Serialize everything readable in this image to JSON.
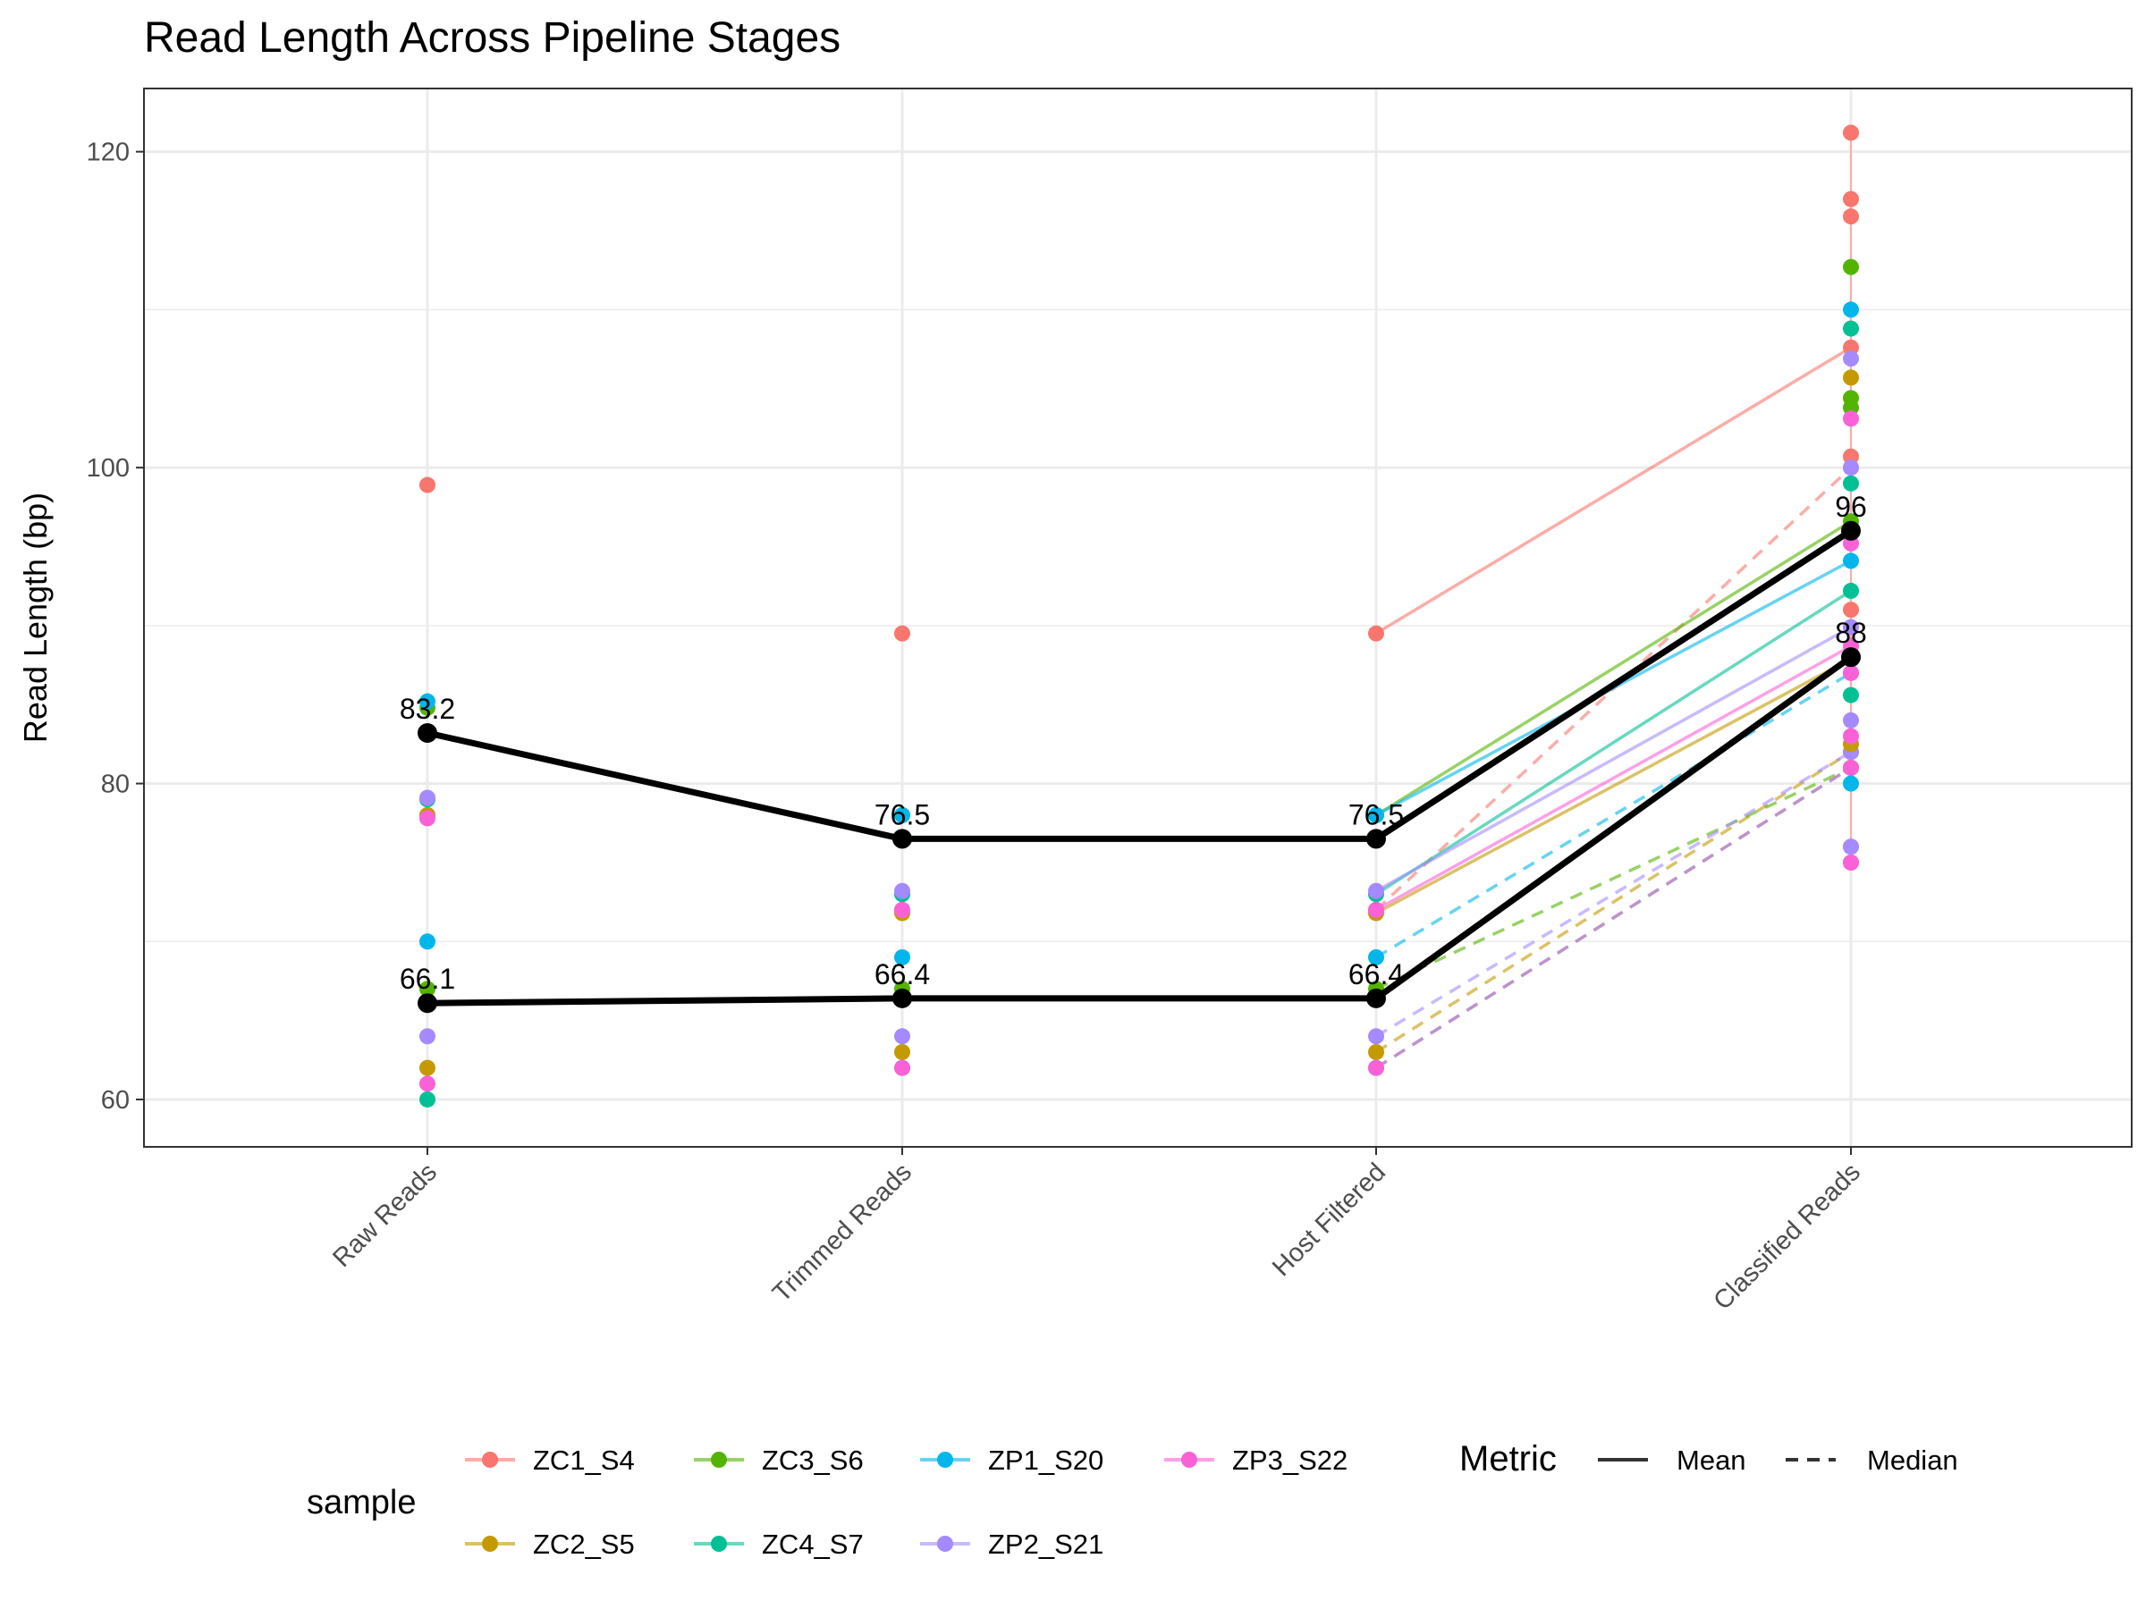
{
  "chart_data": {
    "type": "line",
    "title": "Read Length Across Pipeline Stages",
    "ylabel": "Read Length (bp)",
    "xlabel": "",
    "categories": [
      "Raw Reads",
      "Trimmed Reads",
      "Host Filtered",
      "Classified Reads"
    ],
    "ylim": [
      57,
      124
    ],
    "yticks": [
      60,
      80,
      100,
      120
    ],
    "grid": true,
    "samples": [
      {
        "name": "ZC1_S4",
        "color": "#F8766D",
        "mean": [
          98.9,
          89.5,
          89.5,
          107.6
        ],
        "median": [
          78.0,
          72.0,
          72.0,
          100.0
        ]
      },
      {
        "name": "ZC2_S5",
        "color": "#C49A00",
        "mean": [
          78.0,
          71.8,
          71.8,
          87.9
        ],
        "median": [
          62.0,
          63.0,
          63.0,
          82.0
        ]
      },
      {
        "name": "ZC3_S6",
        "color": "#53B400",
        "mean": [
          84.8,
          78.0,
          78.0,
          96.6
        ],
        "median": [
          67.0,
          67.0,
          67.0,
          81.0
        ]
      },
      {
        "name": "ZC4_S7",
        "color": "#00C094",
        "mean": [
          79.0,
          73.0,
          73.0,
          92.2
        ],
        "median": [
          60.0,
          62.0,
          62.0,
          81.0
        ]
      },
      {
        "name": "ZP1_S20",
        "color": "#00B6EB",
        "mean": [
          85.2,
          78.0,
          78.0,
          94.1
        ],
        "median": [
          70.0,
          69.0,
          69.0,
          87.0
        ]
      },
      {
        "name": "ZP2_S21",
        "color": "#A58AFF",
        "mean": [
          79.1,
          73.2,
          73.2,
          89.9
        ],
        "median": [
          64.0,
          64.0,
          64.0,
          82.0
        ]
      },
      {
        "name": "ZP3_S22",
        "color": "#FB61D7",
        "mean": [
          77.8,
          72.0,
          72.0,
          88.7
        ],
        "median": [
          61.0,
          62.0,
          62.0,
          81.0
        ]
      }
    ],
    "classified_extra_points": [
      {
        "sample": "ZC1_S4",
        "values": [
          121.2,
          117.0,
          115.9,
          100.7,
          91.0,
          75.0
        ]
      },
      {
        "sample": "ZC2_S5",
        "values": [
          105.7,
          82.5,
          76.0
        ]
      },
      {
        "sample": "ZC3_S6",
        "values": [
          112.7,
          104.4,
          103.8
        ]
      },
      {
        "sample": "ZC4_S7",
        "values": [
          108.8,
          99.0,
          85.6
        ]
      },
      {
        "sample": "ZP1_S20",
        "values": [
          110.0,
          80.0
        ]
      },
      {
        "sample": "ZP2_S21",
        "values": [
          106.9,
          100.0,
          84.0,
          76.0
        ]
      },
      {
        "sample": "ZP3_S22",
        "values": [
          103.1,
          95.2,
          87.0,
          83.0,
          75.0
        ]
      }
    ],
    "overall": {
      "mean": {
        "values": [
          83.2,
          76.5,
          76.5,
          96.0
        ],
        "labels": [
          "83.2",
          "76.5",
          "76.5",
          "96"
        ]
      },
      "median": {
        "values": [
          66.1,
          66.4,
          66.4,
          88.0
        ],
        "labels": [
          "66.1",
          "66.4",
          "66.4",
          "88"
        ]
      }
    },
    "legend": {
      "placement": "bottom",
      "sample_title": "sample",
      "metric_title": "Metric",
      "metric_entries": [
        "Mean",
        "Median"
      ]
    }
  }
}
